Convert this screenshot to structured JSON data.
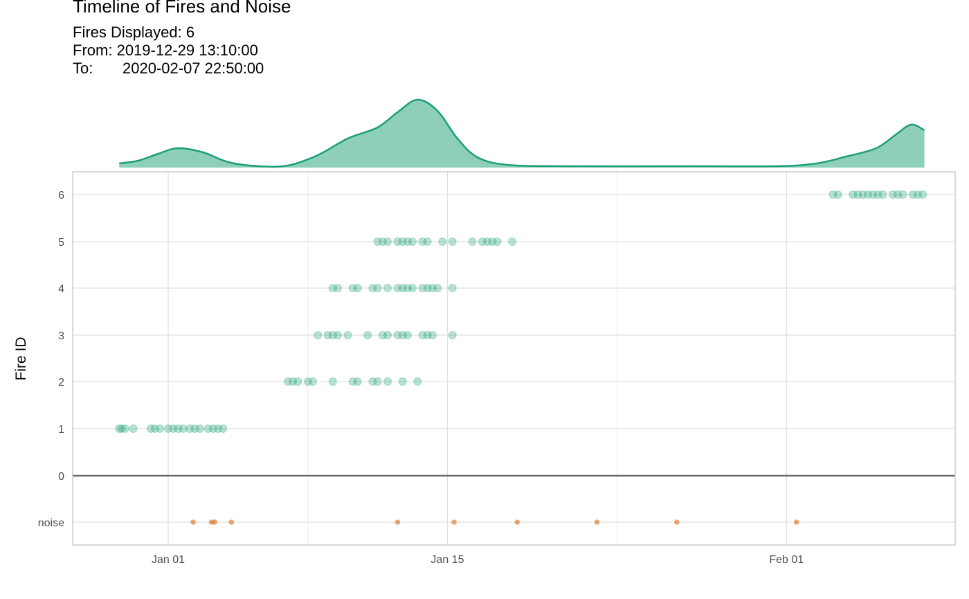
{
  "header": {
    "title": "Timeline of Fires and Noise",
    "fires_displayed": "Fires Displayed: 6",
    "from_label": "From:",
    "from_value": "2019-12-29 13:10:00",
    "to_label": "To:",
    "to_value": "2020-02-07 22:50:00"
  },
  "colors": {
    "fire": "#1b9e77",
    "noise": "#d95f02",
    "density_fill": "#8ecfb9",
    "zero_line": "#6b6b6b"
  },
  "chart_data": {
    "type": "scatter",
    "ylabel": "Fire ID",
    "xlabel": "",
    "x_range": [
      "2019-12-27 05:00",
      "2020-02-09 11:00"
    ],
    "x_ticks": [
      {
        "date": "2020-01-01",
        "label": "Jan 01"
      },
      {
        "date": "2020-01-15",
        "label": "Jan 15"
      },
      {
        "date": "2020-02-01",
        "label": "Feb 01"
      }
    ],
    "y_ticks": [
      "noise",
      "0",
      "1",
      "2",
      "3",
      "4",
      "5",
      "6"
    ],
    "grid": true,
    "density": {
      "x": [
        "2019-12-29 13:00",
        "2019-12-30 12:00",
        "2019-12-31 12:00",
        "2020-01-01 12:00",
        "2020-01-02 18:00",
        "2020-01-04 00:00",
        "2020-01-05 12:00",
        "2020-01-07 00:00",
        "2020-01-08 12:00",
        "2020-01-10 00:00",
        "2020-01-11 12:00",
        "2020-01-12 12:00",
        "2020-01-13 12:00",
        "2020-01-14 12:00",
        "2020-01-15 12:00",
        "2020-01-16 12:00",
        "2020-01-18 00:00",
        "2020-01-21 00:00",
        "2020-01-27 00:00",
        "2020-01-31 12:00",
        "2020-02-02 12:00",
        "2020-02-04 00:00",
        "2020-02-05 12:00",
        "2020-02-06 12:00",
        "2020-02-07 06:00",
        "2020-02-07 22:00"
      ],
      "y": [
        0.06,
        0.1,
        0.2,
        0.28,
        0.22,
        0.08,
        0.02,
        0.03,
        0.18,
        0.42,
        0.58,
        0.8,
        0.98,
        0.82,
        0.42,
        0.15,
        0.04,
        0.02,
        0.02,
        0.02,
        0.06,
        0.16,
        0.28,
        0.48,
        0.62,
        0.54
      ]
    },
    "series": [
      {
        "fire": 1,
        "points": [
          "2019-12-29 13:00",
          "2019-12-29 16:00",
          "2019-12-29 20:00",
          "2019-12-30 06:00",
          "2019-12-31 03:00",
          "2019-12-31 08:00",
          "2019-12-31 14:00",
          "2020-01-01 00:00",
          "2020-01-01 06:00",
          "2020-01-01 12:00",
          "2020-01-01 18:00",
          "2020-01-02 02:00",
          "2020-01-02 08:00",
          "2020-01-02 14:00",
          "2020-01-03 00:00",
          "2020-01-03 06:00",
          "2020-01-03 12:00",
          "2020-01-03 18:00"
        ]
      },
      {
        "fire": 2,
        "points": [
          "2020-01-07 00:00",
          "2020-01-07 06:00",
          "2020-01-07 12:00",
          "2020-01-08 00:00",
          "2020-01-08 06:00",
          "2020-01-09 06:00",
          "2020-01-10 06:00",
          "2020-01-10 12:00",
          "2020-01-11 06:00",
          "2020-01-11 12:00",
          "2020-01-12 00:00",
          "2020-01-12 18:00",
          "2020-01-13 12:00"
        ]
      },
      {
        "fire": 3,
        "points": [
          "2020-01-08 12:00",
          "2020-01-09 00:00",
          "2020-01-09 06:00",
          "2020-01-09 12:00",
          "2020-01-10 00:00",
          "2020-01-11 00:00",
          "2020-01-11 18:00",
          "2020-01-12 00:00",
          "2020-01-12 12:00",
          "2020-01-12 18:00",
          "2020-01-13 00:00",
          "2020-01-13 18:00",
          "2020-01-14 00:00",
          "2020-01-14 06:00",
          "2020-01-15 06:00"
        ]
      },
      {
        "fire": 4,
        "points": [
          "2020-01-09 06:00",
          "2020-01-09 12:00",
          "2020-01-10 06:00",
          "2020-01-10 12:00",
          "2020-01-11 06:00",
          "2020-01-11 12:00",
          "2020-01-12 00:00",
          "2020-01-12 12:00",
          "2020-01-12 18:00",
          "2020-01-13 00:00",
          "2020-01-13 06:00",
          "2020-01-13 18:00",
          "2020-01-14 00:00",
          "2020-01-14 06:00",
          "2020-01-14 12:00",
          "2020-01-15 06:00"
        ]
      },
      {
        "fire": 5,
        "points": [
          "2020-01-11 12:00",
          "2020-01-11 18:00",
          "2020-01-12 00:00",
          "2020-01-12 12:00",
          "2020-01-12 18:00",
          "2020-01-13 00:00",
          "2020-01-13 06:00",
          "2020-01-13 18:00",
          "2020-01-14 00:00",
          "2020-01-14 18:00",
          "2020-01-15 06:00",
          "2020-01-16 06:00",
          "2020-01-16 18:00",
          "2020-01-17 00:00",
          "2020-01-17 06:00",
          "2020-01-17 12:00",
          "2020-01-18 06:00"
        ]
      },
      {
        "fire": 6,
        "points": [
          "2020-02-03 08:00",
          "2020-02-03 14:00",
          "2020-02-04 08:00",
          "2020-02-04 14:00",
          "2020-02-04 20:00",
          "2020-02-05 02:00",
          "2020-02-05 08:00",
          "2020-02-05 14:00",
          "2020-02-05 20:00",
          "2020-02-06 08:00",
          "2020-02-06 14:00",
          "2020-02-06 20:00",
          "2020-02-07 08:00",
          "2020-02-07 14:00",
          "2020-02-07 20:00"
        ]
      }
    ],
    "noise": [
      "2020-01-02 06:00",
      "2020-01-03 04:00",
      "2020-01-03 08:00",
      "2020-01-04 04:00",
      "2020-01-12 12:00",
      "2020-01-15 08:00",
      "2020-01-18 12:00",
      "2020-01-22 12:00",
      "2020-01-26 12:00",
      "2020-02-01 12:00"
    ]
  }
}
